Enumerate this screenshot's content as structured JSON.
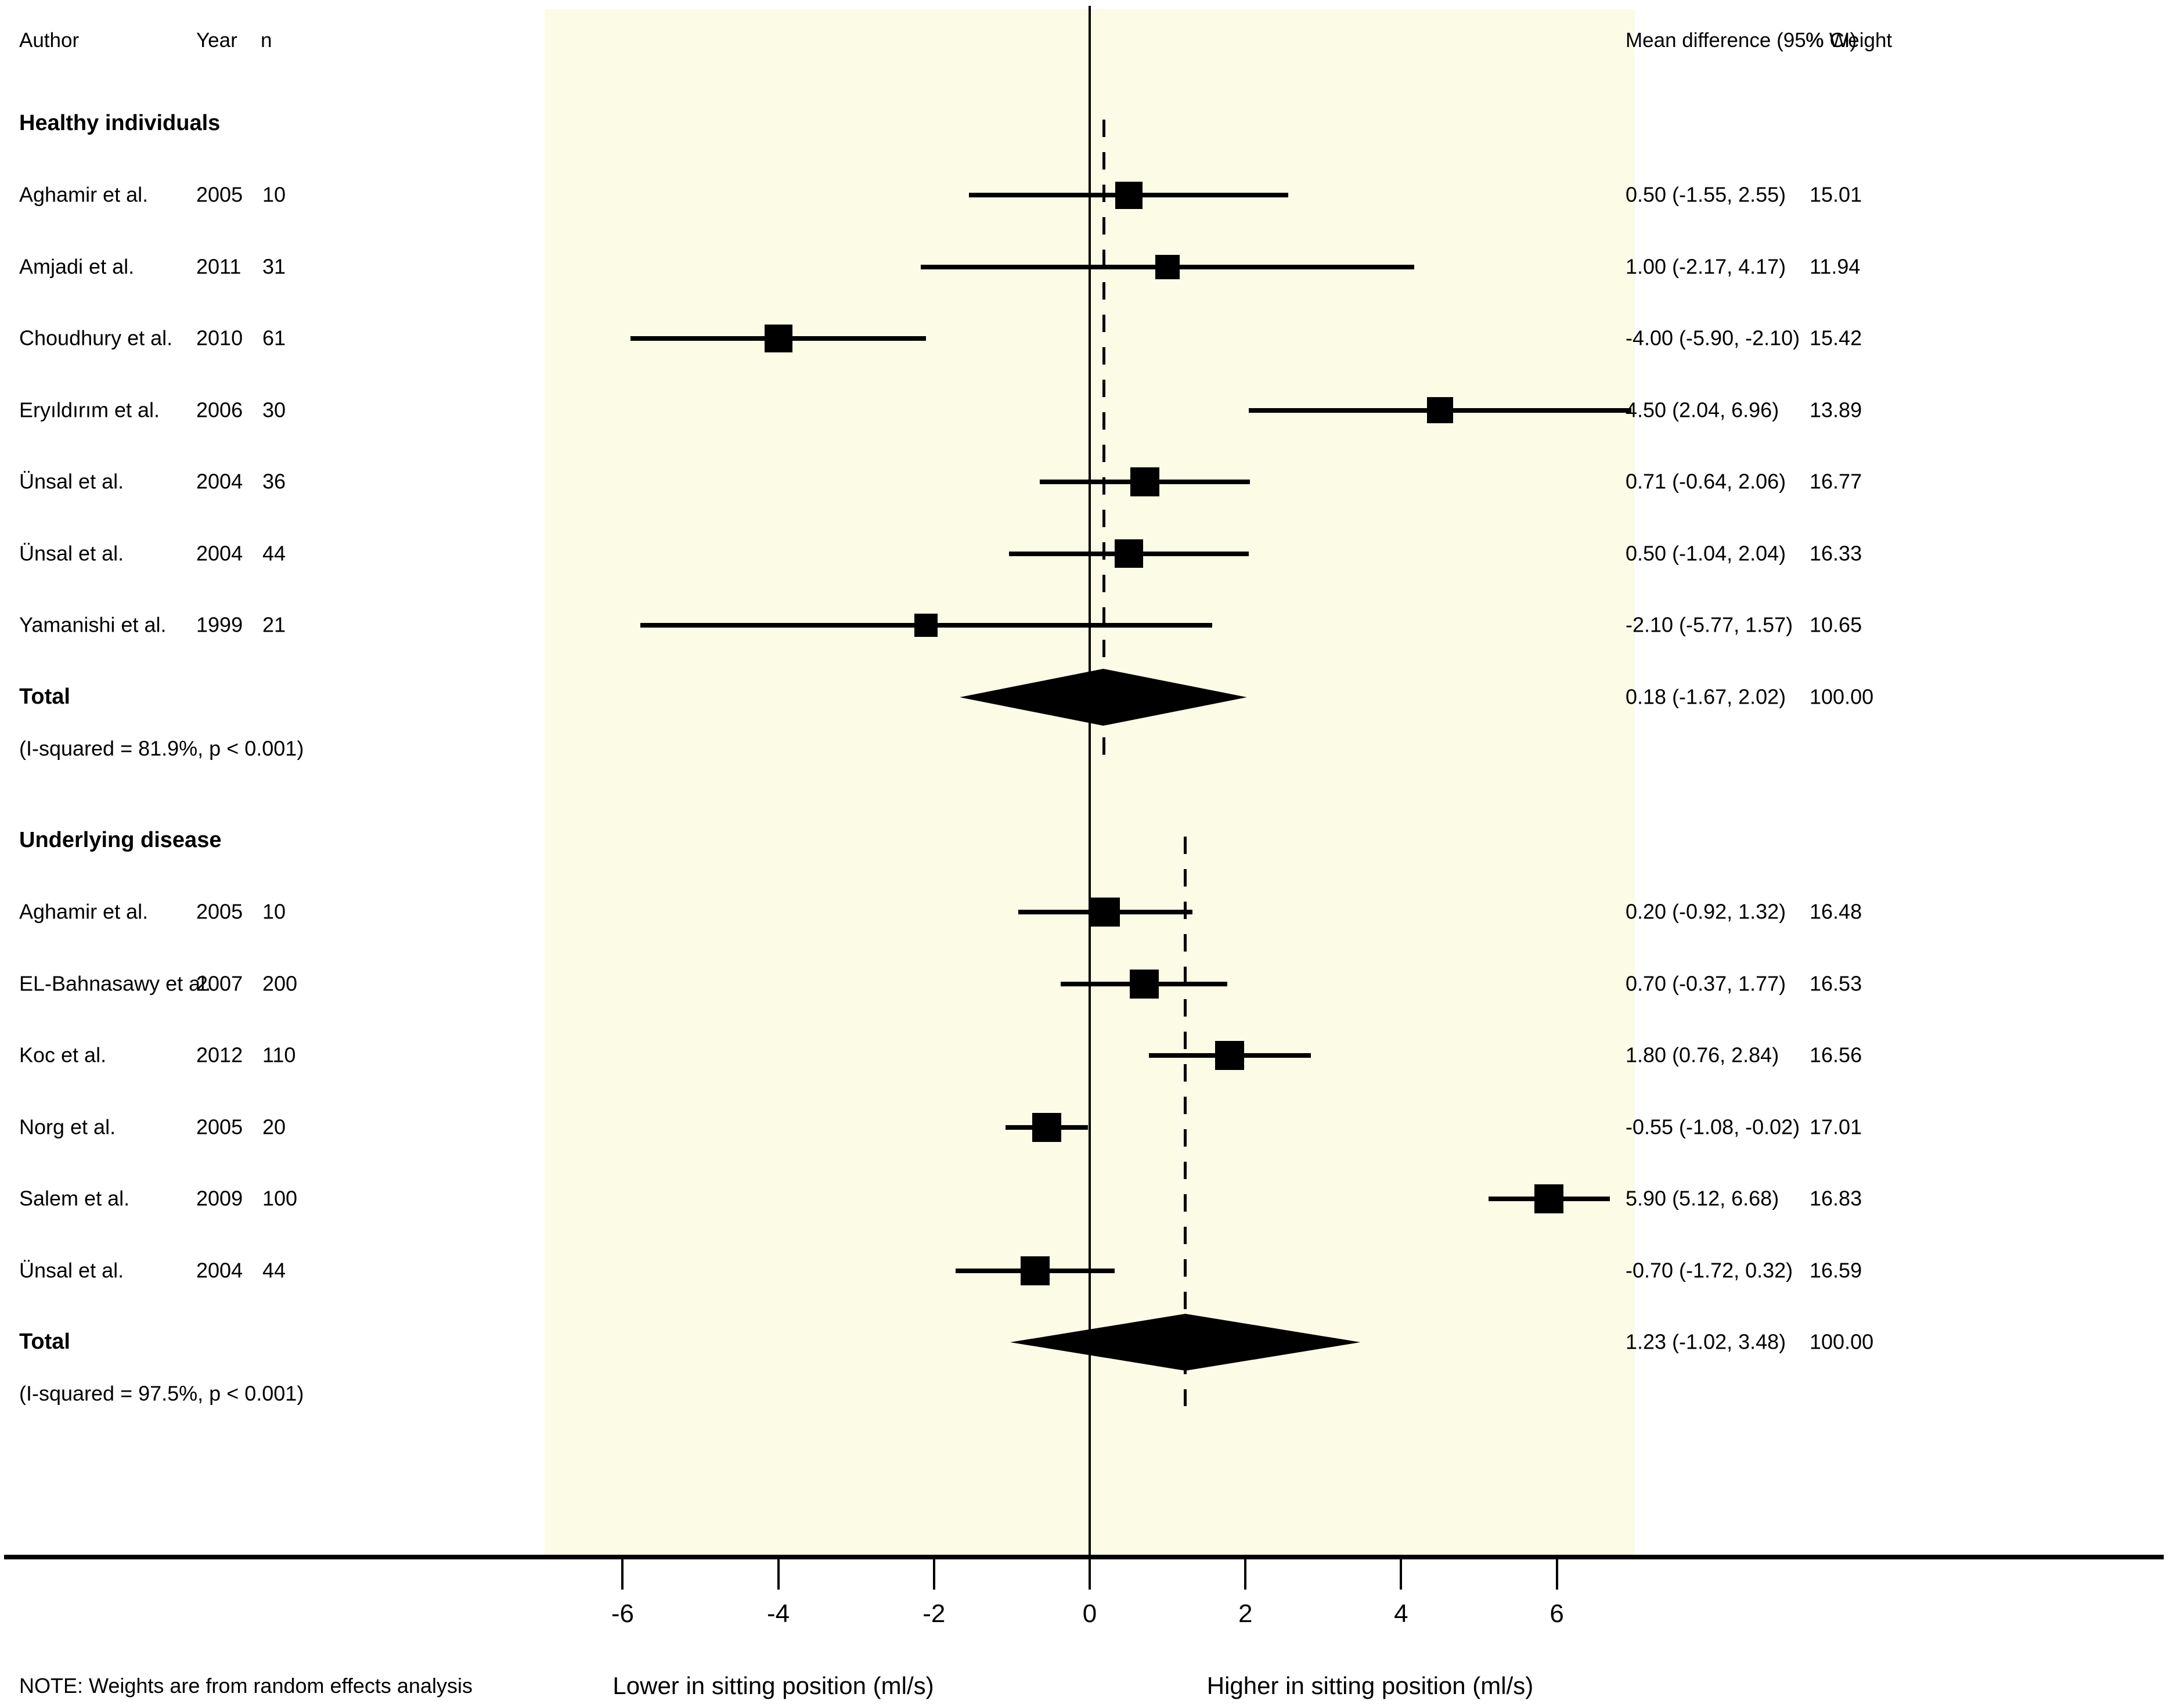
{
  "header": {
    "author": "Author",
    "year": "Year",
    "n": "n",
    "mean_difference": "Mean difference (95% CI)",
    "weight": "% Weight"
  },
  "note": "NOTE: Weights are from random effects analysis",
  "axis": {
    "label_left": "Lower in sitting position (ml/s)",
    "label_right": "Higher in sitting position (ml/s)"
  },
  "colors": {
    "band": "#FBFBE6",
    "ink": "#000000"
  },
  "chart_data": {
    "type": "forest",
    "x_unit": "ml/s",
    "x_axis": {
      "ticks": [
        -6,
        -4,
        -2,
        0,
        2,
        4,
        6
      ],
      "band_range": [
        -7,
        7
      ],
      "zero_line": 0
    },
    "legend": "none",
    "groups": [
      {
        "name": "Healthy individuals",
        "studies": [
          {
            "author": "Aghamir et al.",
            "year": "2005",
            "n": "10",
            "est": 0.5,
            "lo": -1.55,
            "hi": 2.55,
            "ci_label": "0.50 (-1.55, 2.55)",
            "weight": "15.01"
          },
          {
            "author": "Amjadi et al.",
            "year": "2011",
            "n": "31",
            "est": 1.0,
            "lo": -2.17,
            "hi": 4.17,
            "ci_label": "1.00 (-2.17, 4.17)",
            "weight": "11.94"
          },
          {
            "author": "Choudhury et al.",
            "year": "2010",
            "n": "61",
            "est": -4.0,
            "lo": -5.9,
            "hi": -2.1,
            "ci_label": "-4.00 (-5.90, -2.10)",
            "weight": "15.42"
          },
          {
            "author": "Eryıldırım et al.",
            "year": "2006",
            "n": "30",
            "est": 4.5,
            "lo": 2.04,
            "hi": 6.96,
            "ci_label": "4.50 (2.04, 6.96)",
            "weight": "13.89"
          },
          {
            "author": "Ünsal et al.",
            "year": "2004",
            "n": "36",
            "est": 0.71,
            "lo": -0.64,
            "hi": 2.06,
            "ci_label": "0.71 (-0.64, 2.06)",
            "weight": "16.77"
          },
          {
            "author": "Ünsal et al.",
            "year": "2004",
            "n": "44",
            "est": 0.5,
            "lo": -1.04,
            "hi": 2.04,
            "ci_label": "0.50 (-1.04, 2.04)",
            "weight": "16.33"
          },
          {
            "author": "Yamanishi et al.",
            "year": "1999",
            "n": "21",
            "est": -2.1,
            "lo": -5.77,
            "hi": 1.57,
            "ci_label": "-2.10 (-5.77, 1.57)",
            "weight": "10.65"
          }
        ],
        "total": {
          "label": "Total",
          "est": 0.18,
          "lo": -1.67,
          "hi": 2.02,
          "ci_label": "0.18 (-1.67, 2.02)",
          "weight": "100.00",
          "heterogeneity": "(I-squared = 81.9%, p < 0.001)"
        }
      },
      {
        "name": "Underlying disease",
        "studies": [
          {
            "author": "Aghamir et al.",
            "year": "2005",
            "n": "10",
            "est": 0.2,
            "lo": -0.92,
            "hi": 1.32,
            "ci_label": "0.20 (-0.92, 1.32)",
            "weight": "16.48"
          },
          {
            "author": "EL-Bahnasawy et al.",
            "year": "2007",
            "n": "200",
            "est": 0.7,
            "lo": -0.37,
            "hi": 1.77,
            "ci_label": "0.70 (-0.37, 1.77)",
            "weight": "16.53"
          },
          {
            "author": "Koc et al.",
            "year": "2012",
            "n": "110",
            "est": 1.8,
            "lo": 0.76,
            "hi": 2.84,
            "ci_label": "1.80 (0.76, 2.84)",
            "weight": "16.56"
          },
          {
            "author": "Norg et al.",
            "year": "2005",
            "n": "20",
            "est": -0.55,
            "lo": -1.08,
            "hi": -0.02,
            "ci_label": "-0.55 (-1.08, -0.02)",
            "weight": "17.01"
          },
          {
            "author": "Salem et al.",
            "year": "2009",
            "n": "100",
            "est": 5.9,
            "lo": 5.12,
            "hi": 6.68,
            "ci_label": "5.90 (5.12, 6.68)",
            "weight": "16.83"
          },
          {
            "author": "Ünsal et al.",
            "year": "2004",
            "n": "44",
            "est": -0.7,
            "lo": -1.72,
            "hi": 0.32,
            "ci_label": "-0.70 (-1.72, 0.32)",
            "weight": "16.59"
          }
        ],
        "total": {
          "label": "Total",
          "est": 1.23,
          "lo": -1.02,
          "hi": 3.48,
          "ci_label": "1.23 (-1.02, 3.48)",
          "weight": "100.00",
          "heterogeneity": "(I-squared = 97.5%, p < 0.001)"
        }
      }
    ]
  }
}
